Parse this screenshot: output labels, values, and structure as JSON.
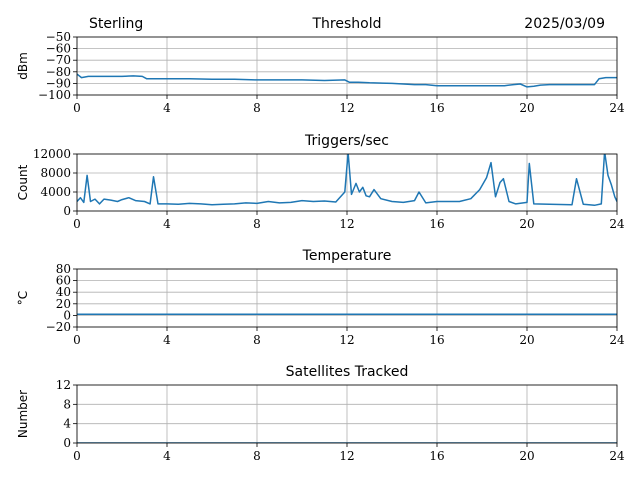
{
  "header": {
    "station": "Sterling",
    "date": "2025/03/09"
  },
  "colors": {
    "series": "#1f77b4",
    "grid": "#b0b0b0",
    "axis": "#000000"
  },
  "chart_data": [
    {
      "type": "line",
      "title": "Threshold",
      "xlabel": "",
      "ylabel": "dBm",
      "xlim": [
        0,
        24
      ],
      "ylim": [
        -100,
        -50
      ],
      "xticks": [
        0,
        4,
        8,
        12,
        16,
        20,
        24
      ],
      "yticks": [
        -100,
        -90,
        -80,
        -70,
        -60,
        -50
      ],
      "ytick_labels": [
        "−100",
        "−90",
        "−80",
        "−70",
        "−60",
        "−50"
      ],
      "grid": true,
      "series": [
        {
          "x": [
            0,
            0.2,
            0.5,
            1,
            1.5,
            2,
            2.5,
            2.9,
            3.1,
            3.4,
            4,
            5,
            6,
            7,
            8,
            8.5,
            9,
            10,
            11,
            11.9,
            12.1,
            12.5,
            13,
            14,
            14.5,
            15,
            15.5,
            16,
            17,
            18,
            19,
            19.4,
            19.7,
            20,
            20.3,
            20.6,
            21,
            22,
            23,
            23.2,
            23.5,
            24
          ],
          "y": [
            -82,
            -85,
            -84,
            -84,
            -84,
            -84,
            -83.5,
            -84,
            -86,
            -86,
            -86,
            -86,
            -86.5,
            -86.5,
            -87,
            -87,
            -87,
            -87,
            -87.5,
            -87,
            -89,
            -89,
            -89.5,
            -90,
            -90.5,
            -91,
            -91,
            -92,
            -92,
            -92,
            -92,
            -91,
            -90.5,
            -93,
            -92.5,
            -91.5,
            -91,
            -91,
            -91,
            -86,
            -85,
            -85
          ]
        }
      ]
    },
    {
      "type": "line",
      "title": "Triggers/sec",
      "xlabel": "",
      "ylabel": "Count",
      "xlim": [
        0,
        24
      ],
      "ylim": [
        0,
        12000
      ],
      "xticks": [
        0,
        4,
        8,
        12,
        16,
        20,
        24
      ],
      "yticks": [
        0,
        4000,
        8000,
        12000
      ],
      "ytick_labels": [
        "0",
        "4000",
        "8000",
        "12000"
      ],
      "grid": true,
      "series": [
        {
          "x": [
            0,
            0.15,
            0.3,
            0.45,
            0.6,
            0.8,
            1,
            1.2,
            1.5,
            1.8,
            2,
            2.3,
            2.6,
            3,
            3.25,
            3.4,
            3.6,
            4,
            4.5,
            5,
            5.5,
            6,
            6.5,
            7,
            7.5,
            8,
            8.5,
            9,
            9.5,
            10,
            10.5,
            11,
            11.5,
            11.9,
            12.05,
            12.2,
            12.4,
            12.55,
            12.7,
            12.85,
            13,
            13.2,
            13.5,
            14,
            14.5,
            15,
            15.2,
            15.5,
            16,
            16.5,
            17,
            17.5,
            17.9,
            18.2,
            18.4,
            18.6,
            18.8,
            18.95,
            19.2,
            19.5,
            20,
            20.1,
            20.3,
            21,
            22,
            22.2,
            22.5,
            23,
            23.3,
            23.45,
            23.6,
            23.75,
            23.9,
            24
          ],
          "y": [
            2000,
            2800,
            1800,
            7500,
            2000,
            2500,
            1500,
            2500,
            2300,
            2000,
            2400,
            2800,
            2200,
            2000,
            1500,
            7200,
            1500,
            1500,
            1400,
            1600,
            1500,
            1300,
            1400,
            1500,
            1700,
            1600,
            2000,
            1700,
            1800,
            2200,
            2000,
            2100,
            1900,
            4000,
            12300,
            3500,
            5800,
            4000,
            5000,
            3200,
            3000,
            4500,
            2600,
            2000,
            1800,
            2200,
            4000,
            1700,
            2000,
            2000,
            2000,
            2600,
            4500,
            7000,
            10200,
            3000,
            6000,
            6800,
            2000,
            1500,
            1800,
            10000,
            1500,
            1400,
            1300,
            6800,
            1400,
            1200,
            1500,
            12500,
            7500,
            5500,
            3000,
            2000
          ]
        }
      ]
    },
    {
      "type": "line",
      "title": "Temperature",
      "xlabel": "",
      "ylabel": "°C",
      "xlim": [
        0,
        24
      ],
      "ylim": [
        -20,
        80
      ],
      "xticks": [
        0,
        4,
        8,
        12,
        16,
        20,
        24
      ],
      "yticks": [
        -20,
        0,
        20,
        40,
        60,
        80
      ],
      "ytick_labels": [
        "−20",
        "0",
        "20",
        "40",
        "60",
        "80"
      ],
      "grid": true,
      "series": [
        {
          "x": [
            0,
            24
          ],
          "y": [
            2,
            2
          ]
        }
      ]
    },
    {
      "type": "line",
      "title": "Satellites Tracked",
      "xlabel": "",
      "ylabel": "Number",
      "xlim": [
        0,
        24
      ],
      "ylim": [
        0,
        12
      ],
      "xticks": [
        0,
        4,
        8,
        12,
        16,
        20,
        24
      ],
      "yticks": [
        0,
        4,
        8,
        12
      ],
      "ytick_labels": [
        "0",
        "4",
        "8",
        "12"
      ],
      "grid": true,
      "series": [
        {
          "x": [
            0,
            24
          ],
          "y": [
            0,
            0
          ]
        }
      ]
    }
  ]
}
